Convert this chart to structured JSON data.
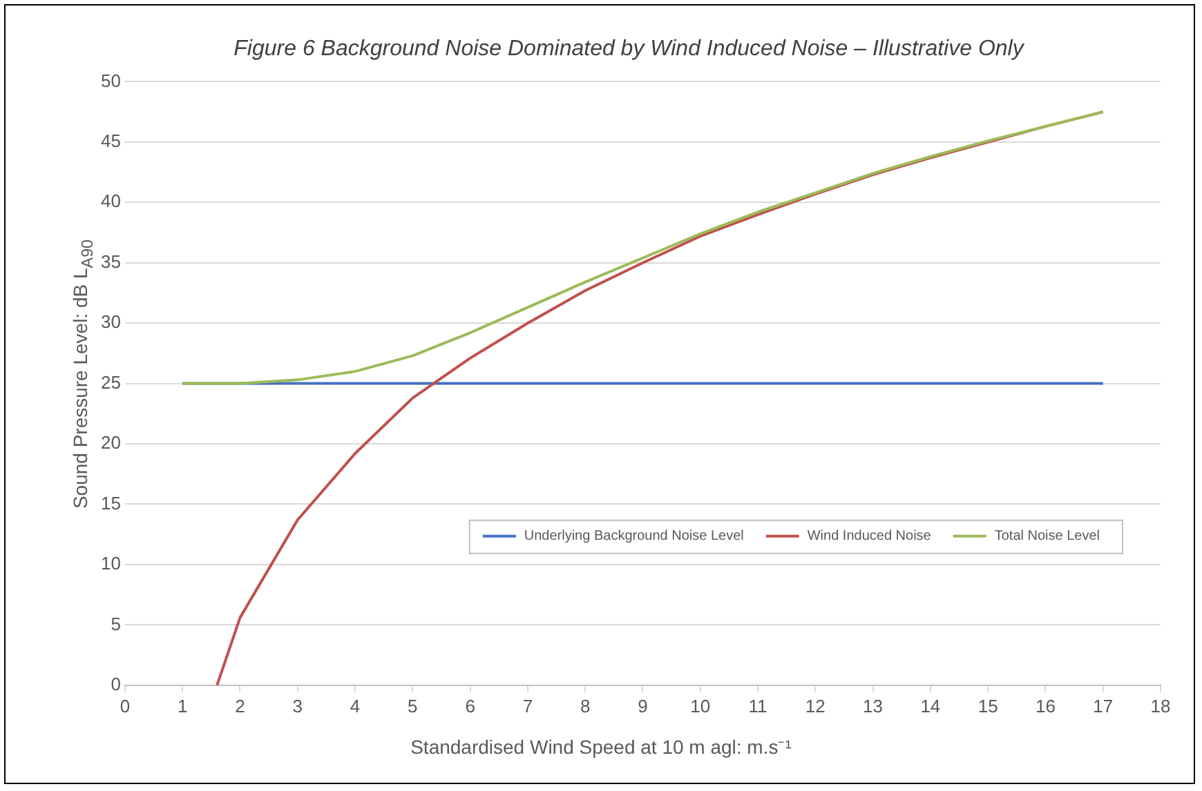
{
  "chart_data": {
    "type": "line",
    "title": "Figure 6 Background Noise Dominated by Wind Induced Noise – Illustrative Only",
    "xlabel": "Standardised Wind Speed at 10 m agl: m.s⁻¹",
    "ylabel": "Sound Pressure Level: dB L$_{A90}$",
    "xlim": [
      0,
      18
    ],
    "xticks": [
      0,
      1,
      2,
      3,
      4,
      5,
      6,
      7,
      8,
      9,
      10,
      11,
      12,
      13,
      14,
      15,
      16,
      17,
      18
    ],
    "ylim": [
      0,
      50
    ],
    "yticks": [
      0,
      5,
      10,
      15,
      20,
      25,
      30,
      35,
      40,
      45,
      50
    ],
    "grid": "y",
    "legend": "bottom right",
    "marker": "none",
    "series": [
      {
        "name": "Underlying Background Noise Level",
        "color": "#4472c4",
        "x": [
          1,
          17
        ],
        "values": [
          25,
          25
        ]
      },
      {
        "name": "Wind Induced Noise",
        "color": "#c0504d",
        "x": [
          1.6,
          2,
          3,
          4,
          5,
          6,
          7,
          8,
          9,
          10,
          11,
          12,
          13,
          14,
          15,
          16,
          17
        ],
        "values": [
          0,
          5.6,
          13.7,
          19.2,
          23.8,
          27.1,
          30,
          32.7,
          35,
          37.2,
          39,
          40.7,
          42.3,
          43.7,
          45,
          46.3,
          47.5
        ]
      },
      {
        "name": "Total Noise Level",
        "color": "#9bbb59",
        "x": [
          1,
          2,
          3,
          4,
          5,
          6,
          7,
          8,
          9,
          10,
          11,
          12,
          13,
          14,
          15,
          16,
          17
        ],
        "values": [
          25,
          25,
          25.3,
          26,
          27.3,
          29.2,
          31.3,
          33.4,
          35.4,
          37.4,
          39.2,
          40.8,
          42.4,
          43.8,
          45.1,
          46.3,
          47.5
        ]
      }
    ]
  }
}
